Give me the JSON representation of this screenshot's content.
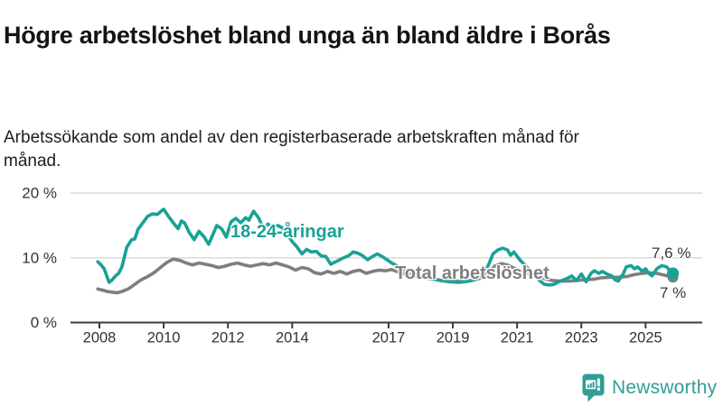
{
  "header": {
    "title": "Högre arbetslöshet bland unga än bland äldre i Borås",
    "subtitle": "Arbetssökande som andel av den registerbaserade arbetskraften månad för månad."
  },
  "footer": {
    "brand": "Newsworthy"
  },
  "colors": {
    "series_young": "#17A296",
    "series_total": "#7E7E7E",
    "grid": "#DBDBDB",
    "axis": "#3A3A3A",
    "tick_text": "#333333",
    "logo": "#2F9E96"
  },
  "chart_data": {
    "type": "line",
    "title": "Högre arbetslöshet bland unga än bland äldre i Borås",
    "subtitle": "Arbetssökande som andel av den registerbaserade arbetskraften månad för månad.",
    "legend": "inline-labels",
    "x_axis": {
      "range": [
        2007.1,
        2026.8
      ],
      "ticks": [
        2008,
        2010,
        2012,
        2014,
        2017,
        2019,
        2021,
        2023,
        2025
      ],
      "tick_labels": [
        "2008",
        "2010",
        "2012",
        "2014",
        "2017",
        "2019",
        "2021",
        "2023",
        "2025"
      ]
    },
    "y_axis": {
      "range": [
        0,
        20
      ],
      "ticks": [
        0,
        10,
        20
      ],
      "tick_labels": [
        "0 %",
        "10 %",
        "20 %"
      ],
      "grid": true,
      "unit": "%"
    },
    "series": [
      {
        "name": "Total arbetslöshet",
        "color": "#7E7E7E",
        "end_label": "7 %",
        "end_value": 7.0,
        "points": [
          [
            2007.95,
            5.2
          ],
          [
            2008.1,
            5.0
          ],
          [
            2008.25,
            4.8
          ],
          [
            2008.4,
            4.7
          ],
          [
            2008.55,
            4.6
          ],
          [
            2008.7,
            4.8
          ],
          [
            2008.9,
            5.2
          ],
          [
            2009.1,
            5.9
          ],
          [
            2009.3,
            6.6
          ],
          [
            2009.5,
            7.1
          ],
          [
            2009.7,
            7.7
          ],
          [
            2009.9,
            8.5
          ],
          [
            2010.1,
            9.3
          ],
          [
            2010.3,
            9.8
          ],
          [
            2010.5,
            9.6
          ],
          [
            2010.7,
            9.2
          ],
          [
            2010.9,
            8.9
          ],
          [
            2011.1,
            9.2
          ],
          [
            2011.3,
            9.0
          ],
          [
            2011.5,
            8.8
          ],
          [
            2011.7,
            8.5
          ],
          [
            2011.9,
            8.7
          ],
          [
            2012.1,
            9.0
          ],
          [
            2012.3,
            9.2
          ],
          [
            2012.5,
            8.9
          ],
          [
            2012.7,
            8.7
          ],
          [
            2012.9,
            8.9
          ],
          [
            2013.1,
            9.1
          ],
          [
            2013.3,
            8.9
          ],
          [
            2013.5,
            9.2
          ],
          [
            2013.7,
            8.9
          ],
          [
            2013.9,
            8.6
          ],
          [
            2014.1,
            8.1
          ],
          [
            2014.3,
            8.5
          ],
          [
            2014.5,
            8.3
          ],
          [
            2014.7,
            7.7
          ],
          [
            2014.9,
            7.5
          ],
          [
            2015.1,
            7.9
          ],
          [
            2015.3,
            7.6
          ],
          [
            2015.5,
            7.9
          ],
          [
            2015.7,
            7.5
          ],
          [
            2015.9,
            7.9
          ],
          [
            2016.1,
            8.1
          ],
          [
            2016.3,
            7.6
          ],
          [
            2016.5,
            7.9
          ],
          [
            2016.7,
            8.1
          ],
          [
            2016.9,
            8.0
          ],
          [
            2017.1,
            8.2
          ],
          [
            2017.25,
            7.9
          ],
          [
            2017.5,
            7.5
          ],
          [
            2017.8,
            7.2
          ],
          [
            2018.1,
            6.9
          ],
          [
            2018.4,
            6.7
          ],
          [
            2018.7,
            6.5
          ],
          [
            2019.0,
            6.4
          ],
          [
            2019.3,
            6.4
          ],
          [
            2019.6,
            6.5
          ],
          [
            2019.9,
            6.9
          ],
          [
            2020.1,
            7.8
          ],
          [
            2020.3,
            8.7
          ],
          [
            2020.5,
            9.1
          ],
          [
            2020.7,
            8.9
          ],
          [
            2020.9,
            8.4
          ],
          [
            2021.1,
            8.0
          ],
          [
            2021.4,
            7.5
          ],
          [
            2021.7,
            7.0
          ],
          [
            2021.9,
            6.7
          ],
          [
            2022.1,
            6.5
          ],
          [
            2022.35,
            6.4
          ],
          [
            2022.6,
            6.4
          ],
          [
            2022.85,
            6.5
          ],
          [
            2023.1,
            6.6
          ],
          [
            2023.4,
            6.7
          ],
          [
            2023.6,
            6.9
          ],
          [
            2023.9,
            7.0
          ],
          [
            2024.1,
            7.0
          ],
          [
            2024.4,
            7.1
          ],
          [
            2024.65,
            7.4
          ],
          [
            2024.9,
            7.6
          ],
          [
            2025.1,
            7.7
          ],
          [
            2025.35,
            7.6
          ],
          [
            2025.6,
            7.3
          ],
          [
            2025.85,
            7.0
          ]
        ]
      },
      {
        "name": "18-24-åringar",
        "color": "#17A296",
        "end_label": "7,6 %",
        "end_value": 7.6,
        "points": [
          [
            2007.95,
            9.4
          ],
          [
            2008.05,
            8.9
          ],
          [
            2008.15,
            8.3
          ],
          [
            2008.25,
            6.9
          ],
          [
            2008.3,
            6.2
          ],
          [
            2008.4,
            6.6
          ],
          [
            2008.5,
            7.2
          ],
          [
            2008.6,
            7.6
          ],
          [
            2008.7,
            8.6
          ],
          [
            2008.85,
            11.6
          ],
          [
            2009.0,
            12.8
          ],
          [
            2009.1,
            12.9
          ],
          [
            2009.2,
            14.4
          ],
          [
            2009.35,
            15.4
          ],
          [
            2009.5,
            16.4
          ],
          [
            2009.65,
            16.8
          ],
          [
            2009.8,
            16.7
          ],
          [
            2009.9,
            17.1
          ],
          [
            2010.0,
            17.5
          ],
          [
            2010.15,
            16.4
          ],
          [
            2010.3,
            15.4
          ],
          [
            2010.45,
            14.5
          ],
          [
            2010.55,
            15.7
          ],
          [
            2010.65,
            15.4
          ],
          [
            2010.8,
            13.9
          ],
          [
            2010.95,
            12.8
          ],
          [
            2011.1,
            14.1
          ],
          [
            2011.25,
            13.3
          ],
          [
            2011.4,
            12.1
          ],
          [
            2011.55,
            13.8
          ],
          [
            2011.65,
            15.0
          ],
          [
            2011.8,
            14.5
          ],
          [
            2011.95,
            13.2
          ],
          [
            2012.1,
            15.6
          ],
          [
            2012.25,
            16.1
          ],
          [
            2012.4,
            15.4
          ],
          [
            2012.55,
            16.2
          ],
          [
            2012.65,
            15.8
          ],
          [
            2012.8,
            17.2
          ],
          [
            2012.95,
            16.2
          ],
          [
            2013.1,
            14.6
          ],
          [
            2013.25,
            15.2
          ],
          [
            2013.4,
            14.7
          ],
          [
            2013.55,
            15.0
          ],
          [
            2013.7,
            14.6
          ],
          [
            2013.85,
            13.6
          ],
          [
            2014.0,
            12.5
          ],
          [
            2014.15,
            11.7
          ],
          [
            2014.3,
            10.6
          ],
          [
            2014.45,
            11.3
          ],
          [
            2014.6,
            10.9
          ],
          [
            2014.75,
            11.0
          ],
          [
            2014.9,
            10.3
          ],
          [
            2015.05,
            10.2
          ],
          [
            2015.2,
            9.0
          ],
          [
            2015.4,
            9.5
          ],
          [
            2015.55,
            9.9
          ],
          [
            2015.75,
            10.3
          ],
          [
            2015.9,
            10.9
          ],
          [
            2016.05,
            10.7
          ],
          [
            2016.2,
            10.3
          ],
          [
            2016.35,
            9.7
          ],
          [
            2016.5,
            10.2
          ],
          [
            2016.65,
            10.6
          ],
          [
            2016.8,
            10.2
          ],
          [
            2016.95,
            9.7
          ],
          [
            2017.1,
            9.2
          ],
          [
            2017.25,
            8.8
          ],
          [
            2017.5,
            8.1
          ],
          [
            2017.75,
            7.6
          ],
          [
            2018.0,
            7.2
          ],
          [
            2018.3,
            6.8
          ],
          [
            2018.6,
            6.5
          ],
          [
            2018.9,
            6.3
          ],
          [
            2019.2,
            6.2
          ],
          [
            2019.5,
            6.4
          ],
          [
            2019.8,
            6.9
          ],
          [
            2019.95,
            7.6
          ],
          [
            2020.1,
            8.8
          ],
          [
            2020.25,
            10.6
          ],
          [
            2020.4,
            11.2
          ],
          [
            2020.55,
            11.5
          ],
          [
            2020.7,
            11.2
          ],
          [
            2020.8,
            10.4
          ],
          [
            2020.9,
            10.9
          ],
          [
            2021.1,
            9.6
          ],
          [
            2021.3,
            8.6
          ],
          [
            2021.5,
            7.6
          ],
          [
            2021.7,
            6.5
          ],
          [
            2021.85,
            5.9
          ],
          [
            2022.0,
            5.8
          ],
          [
            2022.15,
            5.9
          ],
          [
            2022.3,
            6.3
          ],
          [
            2022.55,
            6.8
          ],
          [
            2022.7,
            7.2
          ],
          [
            2022.85,
            6.5
          ],
          [
            2023.0,
            7.5
          ],
          [
            2023.15,
            6.3
          ],
          [
            2023.3,
            7.6
          ],
          [
            2023.4,
            8.0
          ],
          [
            2023.55,
            7.6
          ],
          [
            2023.65,
            7.9
          ],
          [
            2023.8,
            7.5
          ],
          [
            2023.95,
            7.2
          ],
          [
            2024.05,
            6.6
          ],
          [
            2024.15,
            6.4
          ],
          [
            2024.3,
            7.5
          ],
          [
            2024.4,
            8.6
          ],
          [
            2024.55,
            8.8
          ],
          [
            2024.65,
            8.3
          ],
          [
            2024.75,
            8.6
          ],
          [
            2024.9,
            7.9
          ],
          [
            2025.0,
            8.3
          ],
          [
            2025.1,
            7.6
          ],
          [
            2025.2,
            7.2
          ],
          [
            2025.35,
            8.3
          ],
          [
            2025.5,
            8.8
          ],
          [
            2025.65,
            8.6
          ],
          [
            2025.78,
            7.9
          ],
          [
            2025.85,
            7.6
          ]
        ]
      }
    ]
  }
}
